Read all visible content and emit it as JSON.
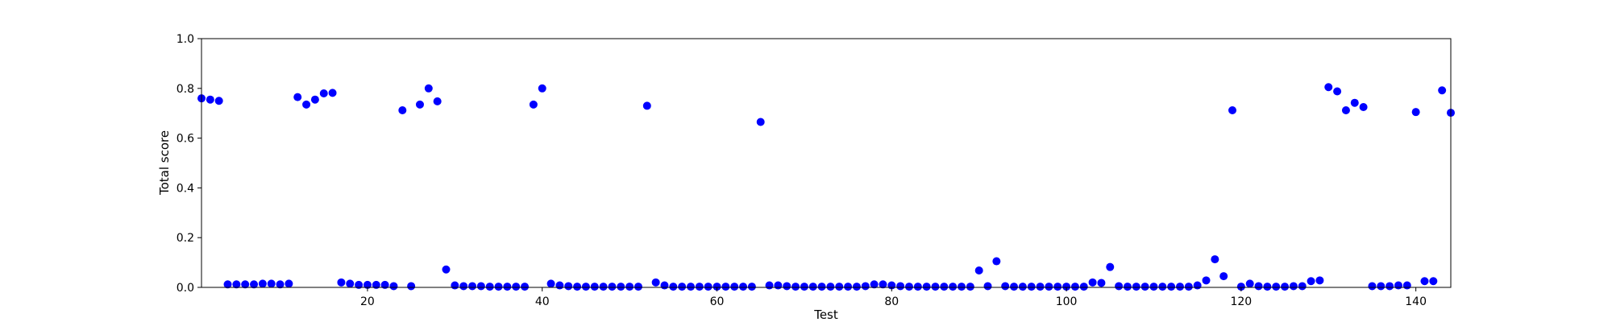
{
  "chart_data": {
    "type": "scatter",
    "xlabel": "Test",
    "ylabel": "Total score",
    "xlim": [
      1,
      144
    ],
    "ylim": [
      0.0,
      1.0
    ],
    "grid": false,
    "x_ticks": [
      20,
      40,
      60,
      80,
      100,
      120,
      140
    ],
    "x_tick_labels": [
      "20",
      "40",
      "60",
      "80",
      "100",
      "120",
      "140"
    ],
    "y_ticks": [
      0.0,
      0.2,
      0.4,
      0.6,
      0.8,
      1.0
    ],
    "y_tick_labels": [
      "0.0",
      "0.2",
      "0.4",
      "0.6",
      "0.8",
      "1.0"
    ],
    "marker_color": "#0000ff",
    "x": [
      1,
      2,
      3,
      4,
      5,
      6,
      7,
      8,
      9,
      10,
      11,
      12,
      13,
      14,
      15,
      16,
      17,
      18,
      19,
      20,
      21,
      22,
      23,
      24,
      25,
      26,
      27,
      28,
      29,
      30,
      31,
      32,
      33,
      34,
      35,
      36,
      37,
      38,
      39,
      40,
      41,
      42,
      43,
      44,
      45,
      46,
      47,
      48,
      49,
      50,
      51,
      52,
      53,
      54,
      55,
      56,
      57,
      58,
      59,
      60,
      61,
      62,
      63,
      64,
      65,
      66,
      67,
      68,
      69,
      70,
      71,
      72,
      73,
      74,
      75,
      76,
      77,
      78,
      79,
      80,
      81,
      82,
      83,
      84,
      85,
      86,
      87,
      88,
      89,
      90,
      91,
      92,
      93,
      94,
      95,
      96,
      97,
      98,
      99,
      100,
      101,
      102,
      103,
      104,
      105,
      106,
      107,
      108,
      109,
      110,
      111,
      112,
      113,
      114,
      115,
      116,
      117,
      118,
      119,
      120,
      121,
      122,
      123,
      124,
      125,
      126,
      127,
      128,
      129,
      130,
      131,
      132,
      133,
      134,
      135,
      136,
      137,
      138,
      139,
      140,
      141,
      142,
      143,
      144
    ],
    "y": [
      0.76,
      0.755,
      0.75,
      0.012,
      0.012,
      0.012,
      0.012,
      0.015,
      0.015,
      0.012,
      0.015,
      0.765,
      0.735,
      0.755,
      0.78,
      0.782,
      0.02,
      0.015,
      0.01,
      0.01,
      0.01,
      0.01,
      0.005,
      0.712,
      0.005,
      0.735,
      0.8,
      0.748,
      0.072,
      0.008,
      0.005,
      0.005,
      0.005,
      0.003,
      0.003,
      0.003,
      0.003,
      0.003,
      0.735,
      0.8,
      0.015,
      0.008,
      0.005,
      0.003,
      0.003,
      0.003,
      0.003,
      0.003,
      0.003,
      0.003,
      0.003,
      0.73,
      0.02,
      0.008,
      0.003,
      0.003,
      0.003,
      0.003,
      0.003,
      0.003,
      0.003,
      0.003,
      0.003,
      0.003,
      0.665,
      0.008,
      0.008,
      0.005,
      0.003,
      0.003,
      0.003,
      0.003,
      0.003,
      0.003,
      0.003,
      0.003,
      0.005,
      0.012,
      0.012,
      0.008,
      0.005,
      0.003,
      0.003,
      0.003,
      0.003,
      0.003,
      0.003,
      0.003,
      0.003,
      0.068,
      0.005,
      0.105,
      0.005,
      0.003,
      0.003,
      0.003,
      0.003,
      0.003,
      0.003,
      0.003,
      0.003,
      0.003,
      0.02,
      0.018,
      0.082,
      0.005,
      0.003,
      0.003,
      0.003,
      0.003,
      0.003,
      0.003,
      0.003,
      0.003,
      0.008,
      0.028,
      0.113,
      0.045,
      0.712,
      0.003,
      0.015,
      0.005,
      0.003,
      0.003,
      0.003,
      0.005,
      0.005,
      0.025,
      0.028,
      0.805,
      0.788,
      0.712,
      0.742,
      0.725,
      0.005,
      0.005,
      0.005,
      0.008,
      0.008,
      0.705,
      0.025,
      0.025,
      0.792,
      0.702
    ]
  }
}
